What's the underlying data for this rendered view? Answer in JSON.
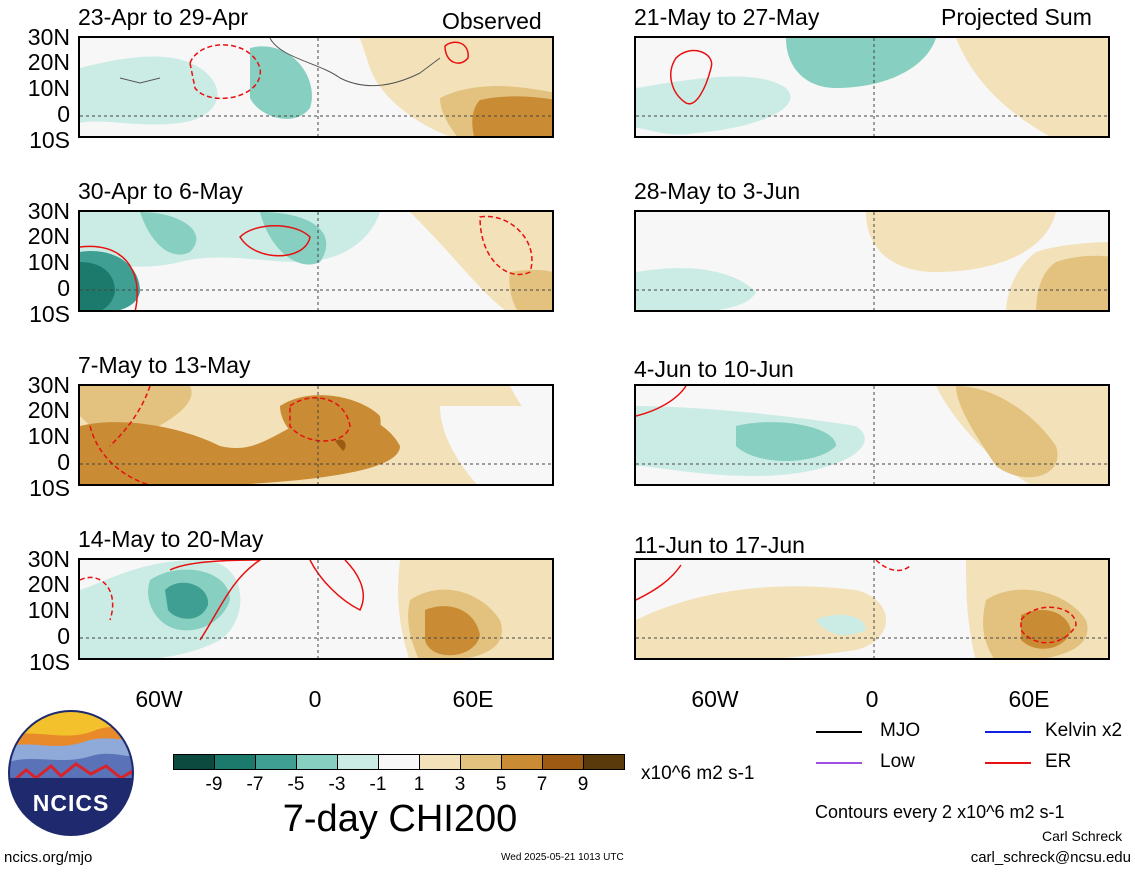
{
  "left_column": {
    "corner_label": "Observed",
    "panels": [
      {
        "title": "23-Apr to 29-Apr"
      },
      {
        "title": "30-Apr to 6-May"
      },
      {
        "title": "7-May to 13-May"
      },
      {
        "title": "14-May to 20-May"
      }
    ]
  },
  "right_column": {
    "corner_label": "Projected Sum",
    "panels": [
      {
        "title": "21-May to 27-May"
      },
      {
        "title": "28-May to 3-Jun"
      },
      {
        "title": "4-Jun to 10-Jun"
      },
      {
        "title": "11-Jun to 17-Jun"
      }
    ]
  },
  "lat_labels": [
    "30N",
    "20N",
    "10N",
    "0",
    "10S"
  ],
  "lon_labels": [
    "60W",
    "0",
    "60E"
  ],
  "colorbar": {
    "title": "7-day CHI200",
    "units": "x10^6 m2 s-1",
    "ticks": [
      "-9",
      "-7",
      "-5",
      "-3",
      "-1",
      "1",
      "3",
      "5",
      "7",
      "9"
    ],
    "colors": [
      "#0c4a3f",
      "#1b7a6c",
      "#3f9f92",
      "#86cfc1",
      "#cbece4",
      "#f7f7f7",
      "#f3e2b9",
      "#e3c27f",
      "#c98b33",
      "#9c5a12",
      "#5a3a0a"
    ]
  },
  "legend": {
    "items": [
      {
        "label": "MJO",
        "color": "#000000"
      },
      {
        "label": "Kelvin x2",
        "color": "#1020e0"
      },
      {
        "label": "Low",
        "color": "#a050e0"
      },
      {
        "label": "ER",
        "color": "#e81010"
      }
    ],
    "contour_note": "Contours every 2 x10^6 m2 s-1"
  },
  "logo": {
    "text": "NCICS"
  },
  "footer": {
    "url": "ncics.org/mjo",
    "timestamp": "Wed 2025-05-21 1013 UTC",
    "author": "Carl Schreck",
    "email": "carl_schreck@ncsu.edu"
  }
}
